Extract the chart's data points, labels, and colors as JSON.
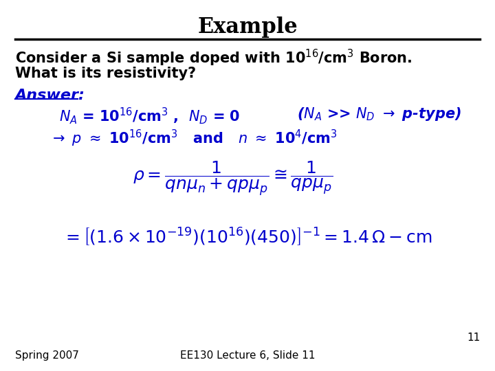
{
  "title": "Example",
  "bg_color": "#ffffff",
  "text_color": "#000000",
  "blue_color": "#0000cd",
  "title_fontsize": 22,
  "body_fontsize": 15,
  "footer_fontsize": 11,
  "slide_number": "11",
  "footer_left": "Spring 2007",
  "footer_center": "EE130 Lecture 6, Slide 11"
}
